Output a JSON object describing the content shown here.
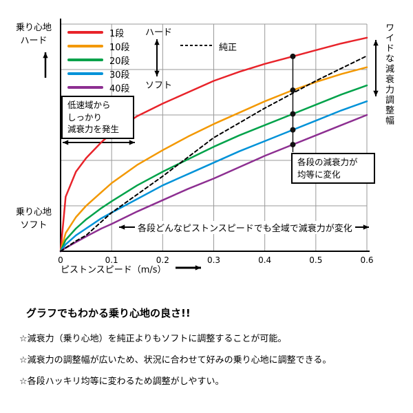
{
  "chart_data": {
    "type": "line",
    "title": "",
    "xlabel": "ピストンスピード（m/s）",
    "ylabel": "",
    "xlim": [
      0,
      0.6
    ],
    "ylim": [
      0,
      100
    ],
    "x_ticks": [
      0,
      0.1,
      0.2,
      0.3,
      0.4,
      0.5,
      0.6
    ],
    "grid": true,
    "legend_position": "top-left",
    "marker_x": 0.455,
    "x": [
      0,
      0.01,
      0.03,
      0.05,
      0.08,
      0.1,
      0.15,
      0.2,
      0.25,
      0.3,
      0.35,
      0.4,
      0.45,
      0.5,
      0.55,
      0.6
    ],
    "series": [
      {
        "name": "1段",
        "color": "#e8232a",
        "dashed": false,
        "values": [
          0,
          24,
          35,
          41,
          48,
          52,
          59.5,
          65,
          70,
          75,
          79,
          82.5,
          85.5,
          88.5,
          91.5,
          94
        ]
      },
      {
        "name": "10段",
        "color": "#f39800",
        "dashed": false,
        "values": [
          0,
          8,
          15,
          20,
          26,
          30,
          38,
          44.5,
          50.5,
          56,
          61,
          66,
          70.5,
          74.5,
          78,
          81
        ]
      },
      {
        "name": "20段",
        "color": "#00a24a",
        "dashed": false,
        "values": [
          0,
          5,
          10,
          14,
          19,
          22,
          29,
          35,
          40.5,
          46,
          51,
          55.5,
          60,
          64.5,
          69,
          73
        ]
      },
      {
        "name": "30段",
        "color": "#0092d8",
        "dashed": false,
        "values": [
          0,
          3,
          7,
          10,
          14.5,
          17,
          23,
          29,
          34,
          39,
          44,
          48.5,
          53,
          57.5,
          62,
          66
        ]
      },
      {
        "name": "40段",
        "color": "#8d2f91",
        "dashed": false,
        "values": [
          0,
          1.5,
          4,
          6.5,
          10,
          12,
          17.5,
          22.5,
          27.5,
          32,
          37,
          42,
          46.5,
          51,
          55.5,
          60
        ]
      },
      {
        "name": "純正",
        "color": "#000000",
        "dashed": true,
        "values": [
          0,
          1.5,
          4.5,
          7,
          13,
          17,
          25,
          33,
          41.5,
          50,
          56.5,
          63,
          69,
          75,
          80.5,
          86
        ]
      }
    ]
  },
  "axis": {
    "y_top_label": "乗り心地\nハード",
    "y_bottom_label": "乗り心地\nソフト",
    "x_label": "ピストンスピード（m/s）"
  },
  "legend": {
    "hard": "ハード",
    "soft": "ソフト"
  },
  "annotations": {
    "low_speed_box": "低速域から\nしっかり\n減衰力を発生",
    "equal_change_box": "各段の減衰力が\n均等に変化",
    "full_range": "各段どんなピストンスピードでも全域で減衰力が変化",
    "wide_range": "ワイドな減衰力調整幅"
  },
  "footer": {
    "title": "グラフでもわかる乗り心地の良さ!!",
    "bullets": [
      "☆減衰力（乗り心地）を純正よりもソフトに調整することが可能。",
      "☆減衰力の調整幅が広いため、状況に合わせて好みの乗り心地に調整できる。",
      "☆各段ハッキリ均等に変わるため調整がしやすい。"
    ]
  },
  "colors": {
    "grid": "#999999",
    "axis": "#000000",
    "marker": "#111111",
    "background": "#ffffff"
  }
}
